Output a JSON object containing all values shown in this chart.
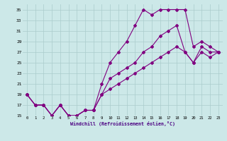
{
  "background_color": "#cce8e8",
  "line_color": "#800080",
  "grid_color": "#aacccc",
  "xlabel": "Windchill (Refroidissement éolien,°C)",
  "xlim": [
    -0.5,
    23.5
  ],
  "ylim": [
    15,
    36
  ],
  "yticks": [
    15,
    17,
    19,
    21,
    23,
    25,
    27,
    29,
    31,
    33,
    35
  ],
  "xticks": [
    0,
    1,
    2,
    3,
    4,
    5,
    6,
    7,
    8,
    9,
    10,
    11,
    12,
    13,
    14,
    15,
    16,
    17,
    18,
    19,
    20,
    21,
    22,
    23
  ],
  "line1_x": [
    0,
    1,
    2,
    3,
    4,
    5,
    6,
    7,
    8,
    9,
    10,
    11,
    12,
    13,
    14,
    15,
    16,
    17,
    18,
    19,
    20,
    21,
    22,
    23
  ],
  "line1_y": [
    19,
    17,
    17,
    15,
    17,
    15,
    15,
    16,
    16,
    21,
    25,
    27,
    29,
    32,
    35,
    34,
    35,
    35,
    35,
    35,
    28,
    29,
    28,
    27
  ],
  "line2_x": [
    0,
    1,
    2,
    3,
    4,
    5,
    6,
    7,
    8,
    9,
    10,
    11,
    12,
    13,
    14,
    15,
    16,
    17,
    18,
    19,
    20,
    21,
    22,
    23
  ],
  "line2_y": [
    19,
    17,
    17,
    15,
    17,
    15,
    15,
    16,
    16,
    19,
    22,
    23,
    24,
    25,
    27,
    28,
    30,
    31,
    32,
    27,
    25,
    28,
    27,
    27
  ],
  "line3_x": [
    0,
    1,
    2,
    3,
    4,
    5,
    6,
    7,
    8,
    9,
    10,
    11,
    12,
    13,
    14,
    15,
    16,
    17,
    18,
    19,
    20,
    21,
    22,
    23
  ],
  "line3_y": [
    19,
    17,
    17,
    15,
    17,
    15,
    15,
    16,
    16,
    19,
    20,
    21,
    22,
    23,
    24,
    25,
    26,
    27,
    28,
    27,
    25,
    27,
    26,
    27
  ]
}
